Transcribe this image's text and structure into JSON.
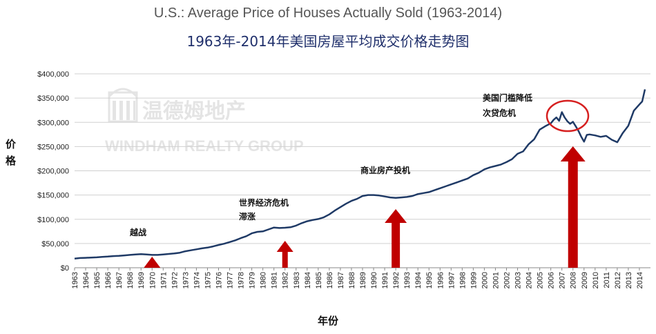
{
  "chart_data": {
    "type": "line",
    "title": "U.S.: Average Price of Houses Actually Sold (1963-2014)",
    "subtitle": "1963年-2014年美国房屋平均成交价格走势图",
    "ylabel": "价格",
    "xlabel": "年份",
    "ylim": [
      0,
      400000
    ],
    "xlim": [
      1963,
      2015
    ],
    "y_ticks": [
      {
        "value": 0,
        "label": "$0"
      },
      {
        "value": 50000,
        "label": "$50,000"
      },
      {
        "value": 100000,
        "label": "$100,000"
      },
      {
        "value": 150000,
        "label": "$150,000"
      },
      {
        "value": 200000,
        "label": "$200,000"
      },
      {
        "value": 250000,
        "label": "$250,000"
      },
      {
        "value": 300000,
        "label": "$300,000"
      },
      {
        "value": 350000,
        "label": "$350,000"
      },
      {
        "value": 400000,
        "label": "$400,000"
      }
    ],
    "x_ticks": [
      "1963",
      "1964",
      "1965",
      "1966",
      "1967",
      "1968",
      "1969",
      "1970",
      "1971",
      "1972",
      "1973",
      "1974",
      "1975",
      "1976",
      "1977",
      "1978",
      "1979",
      "1980",
      "1981",
      "1982",
      "1983",
      "1984",
      "1985",
      "1986",
      "1987",
      "1988",
      "1989",
      "1990",
      "1991",
      "1992",
      "1993",
      "1994",
      "1995",
      "1996",
      "1997",
      "1998",
      "1999",
      "2000",
      "2001",
      "2002",
      "2003",
      "2004",
      "2005",
      "2006",
      "2007",
      "2008",
      "2009",
      "2010",
      "2011",
      "2012",
      "2013",
      "2014"
    ],
    "grid": true,
    "line_color": "#1f3a66",
    "series": [
      {
        "x": [
          1963,
          1963.5,
          1964,
          1964.5,
          1965,
          1965.5,
          1966,
          1966.5,
          1967,
          1967.5,
          1968,
          1968.5,
          1969,
          1969.5,
          1970,
          1970.5,
          1971,
          1971.5,
          1972,
          1972.5,
          1973,
          1973.5,
          1974,
          1974.5,
          1975,
          1975.5,
          1976,
          1976.5,
          1977,
          1977.5,
          1978,
          1978.5,
          1979,
          1979.5,
          1980,
          1980.5,
          1981,
          1981.5,
          1982,
          1982.5,
          1983,
          1983.5,
          1984,
          1984.5,
          1985,
          1985.5,
          1986,
          1986.5,
          1987,
          1987.5,
          1988,
          1988.5,
          1989,
          1989.5,
          1990,
          1990.5,
          1991,
          1991.5,
          1992,
          1992.5,
          1993,
          1993.5,
          1994,
          1994.5,
          1995,
          1995.5,
          1996,
          1996.5,
          1997,
          1997.5,
          1998,
          1998.5,
          1999,
          1999.5,
          2000,
          2000.5,
          2001,
          2001.5,
          2002,
          2002.5,
          2003,
          2003.5,
          2004,
          2004.5,
          2005,
          2005.5,
          2006,
          2006.25,
          2006.5,
          2006.75,
          2007,
          2007.25,
          2007.5,
          2007.75,
          2008,
          2008.25,
          2008.5,
          2008.75,
          2009,
          2009.25,
          2009.5,
          2010,
          2010.5,
          2011,
          2011.5,
          2012,
          2012.5,
          2013,
          2013.5,
          2014,
          2014.25,
          2014.5
        ],
        "y": [
          19000,
          20000,
          20500,
          21000,
          21500,
          22500,
          23000,
          24000,
          24500,
          25500,
          26500,
          27500,
          28000,
          27500,
          26500,
          26500,
          27500,
          28500,
          29500,
          31000,
          34000,
          36000,
          38000,
          40000,
          41500,
          44000,
          47000,
          49500,
          53000,
          56500,
          61000,
          65000,
          71000,
          74000,
          75000,
          79000,
          83000,
          82000,
          82500,
          83500,
          87000,
          92000,
          96000,
          98500,
          100500,
          104000,
          110000,
          118000,
          125000,
          132000,
          138000,
          142000,
          148000,
          150000,
          150000,
          149000,
          147000,
          145000,
          144000,
          145000,
          146000,
          148000,
          152000,
          154000,
          156000,
          160000,
          164000,
          168000,
          172000,
          176000,
          180000,
          184000,
          191000,
          196000,
          203000,
          207000,
          210000,
          213000,
          218000,
          224000,
          235000,
          240000,
          255000,
          265000,
          285000,
          292000,
          298000,
          305000,
          310000,
          303000,
          321000,
          310000,
          302000,
          297000,
          301000,
          292000,
          282000,
          270000,
          260000,
          274000,
          275000,
          273000,
          270000,
          272000,
          264000,
          259000,
          278000,
          293000,
          324000,
          337000,
          343000,
          368000
        ]
      }
    ],
    "annotations": [
      {
        "text": "越战",
        "year": 1970
      },
      {
        "text": "世界经济危机",
        "year": 1982
      },
      {
        "text": "滞涨",
        "year": 1982
      },
      {
        "text": "商业房产投机",
        "year": 1992
      },
      {
        "text": "美国门槛降低",
        "year": 2008
      },
      {
        "text": "次贷危机",
        "year": 2008
      }
    ],
    "arrow_color": "#c00000"
  },
  "watermark": {
    "cn": "温德姆地产",
    "en": "WINDHAM REALTY GROUP"
  }
}
